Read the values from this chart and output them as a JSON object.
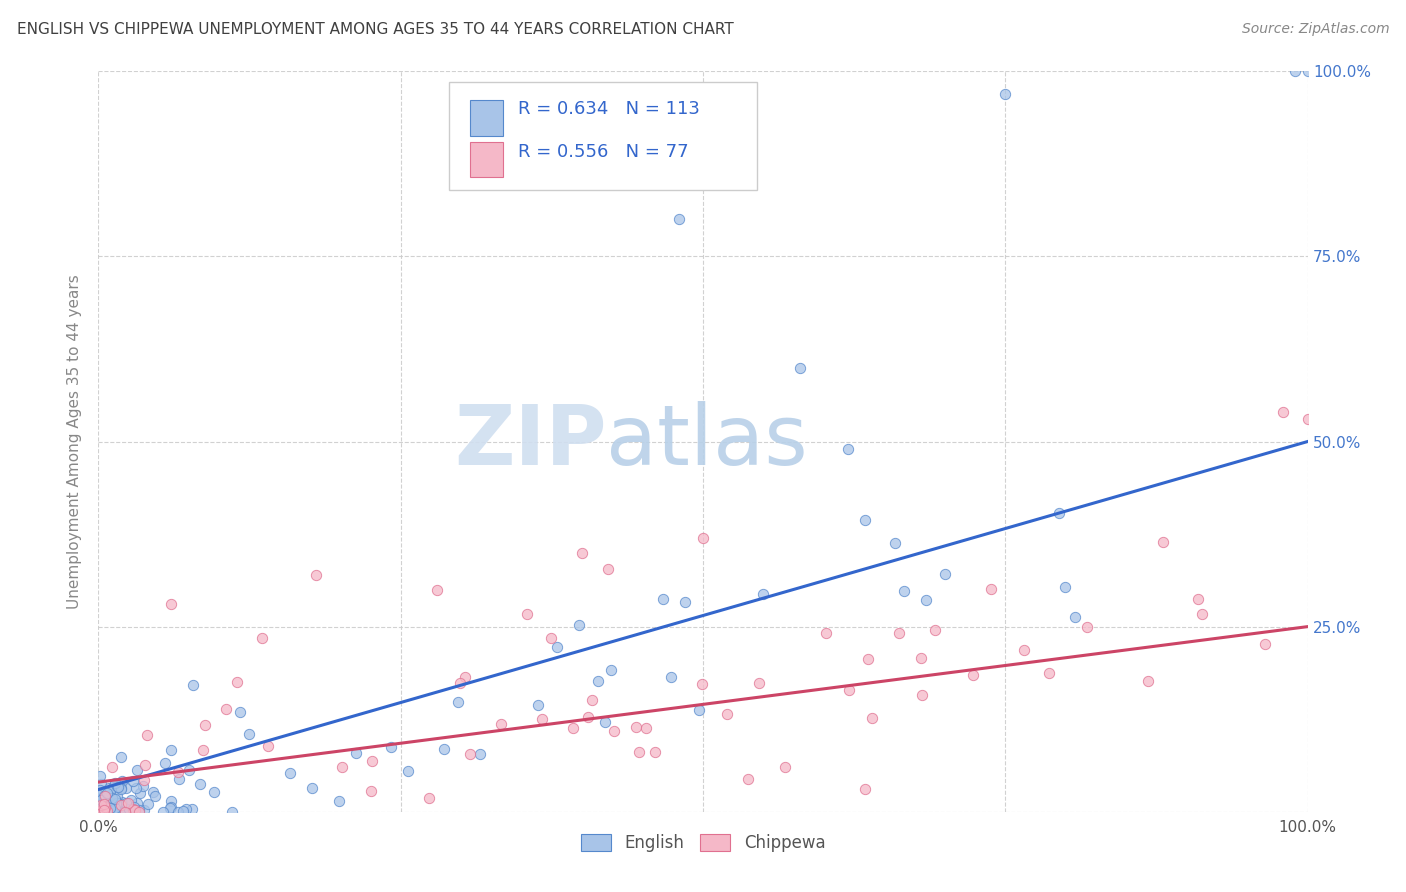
{
  "title": "ENGLISH VS CHIPPEWA UNEMPLOYMENT AMONG AGES 35 TO 44 YEARS CORRELATION CHART",
  "source": "Source: ZipAtlas.com",
  "ylabel": "Unemployment Among Ages 35 to 44 years",
  "english_R": 0.634,
  "english_N": 113,
  "chippewa_R": 0.556,
  "chippewa_N": 77,
  "english_fill_color": "#a8c4e8",
  "english_edge_color": "#5588cc",
  "chippewa_fill_color": "#f5b8c8",
  "chippewa_edge_color": "#e07090",
  "english_line_color": "#3366cc",
  "chippewa_line_color": "#cc4466",
  "background_color": "#ffffff",
  "grid_color": "#cccccc",
  "title_color": "#404040",
  "title_fontsize": 11,
  "right_tick_color": "#4477cc",
  "watermark_color": "#d0dff0",
  "legend_box_color": "#e8eef8",
  "legend_text_color": "#3366cc"
}
